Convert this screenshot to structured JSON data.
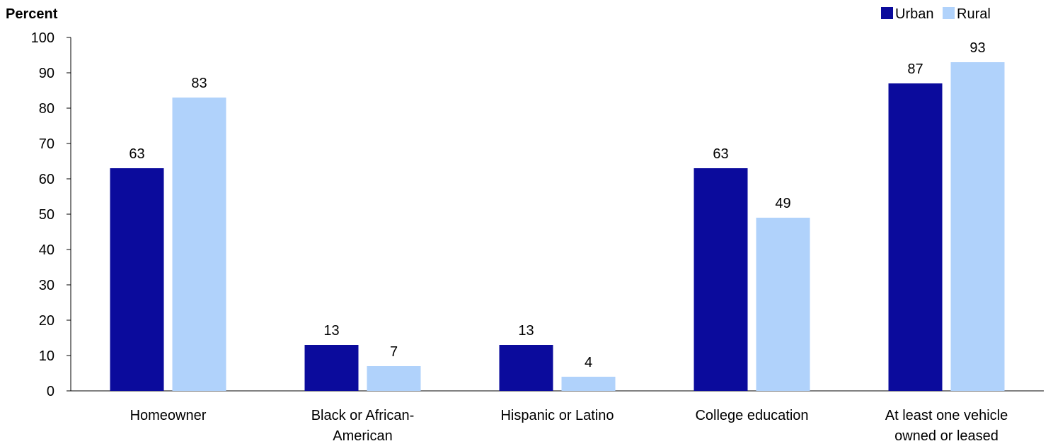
{
  "chart_data": {
    "type": "bar",
    "title": "",
    "xlabel": "",
    "ylabel": "Percent",
    "ylim": [
      0,
      100
    ],
    "yticks": [
      0,
      10,
      20,
      30,
      40,
      50,
      60,
      70,
      80,
      90,
      100
    ],
    "grid": false,
    "legend_position": "top-right",
    "categories": [
      [
        "Homeowner"
      ],
      [
        "Black or African-",
        "American"
      ],
      [
        "Hispanic or Latino"
      ],
      [
        "College education"
      ],
      [
        "At least one vehicle",
        "owned or leased"
      ]
    ],
    "series": [
      {
        "name": "Urban",
        "color": "#0b0b9c",
        "values": [
          63,
          13,
          13,
          63,
          87
        ]
      },
      {
        "name": "Rural",
        "color": "#b0d2fb",
        "values": [
          83,
          7,
          4,
          49,
          93
        ]
      }
    ]
  }
}
